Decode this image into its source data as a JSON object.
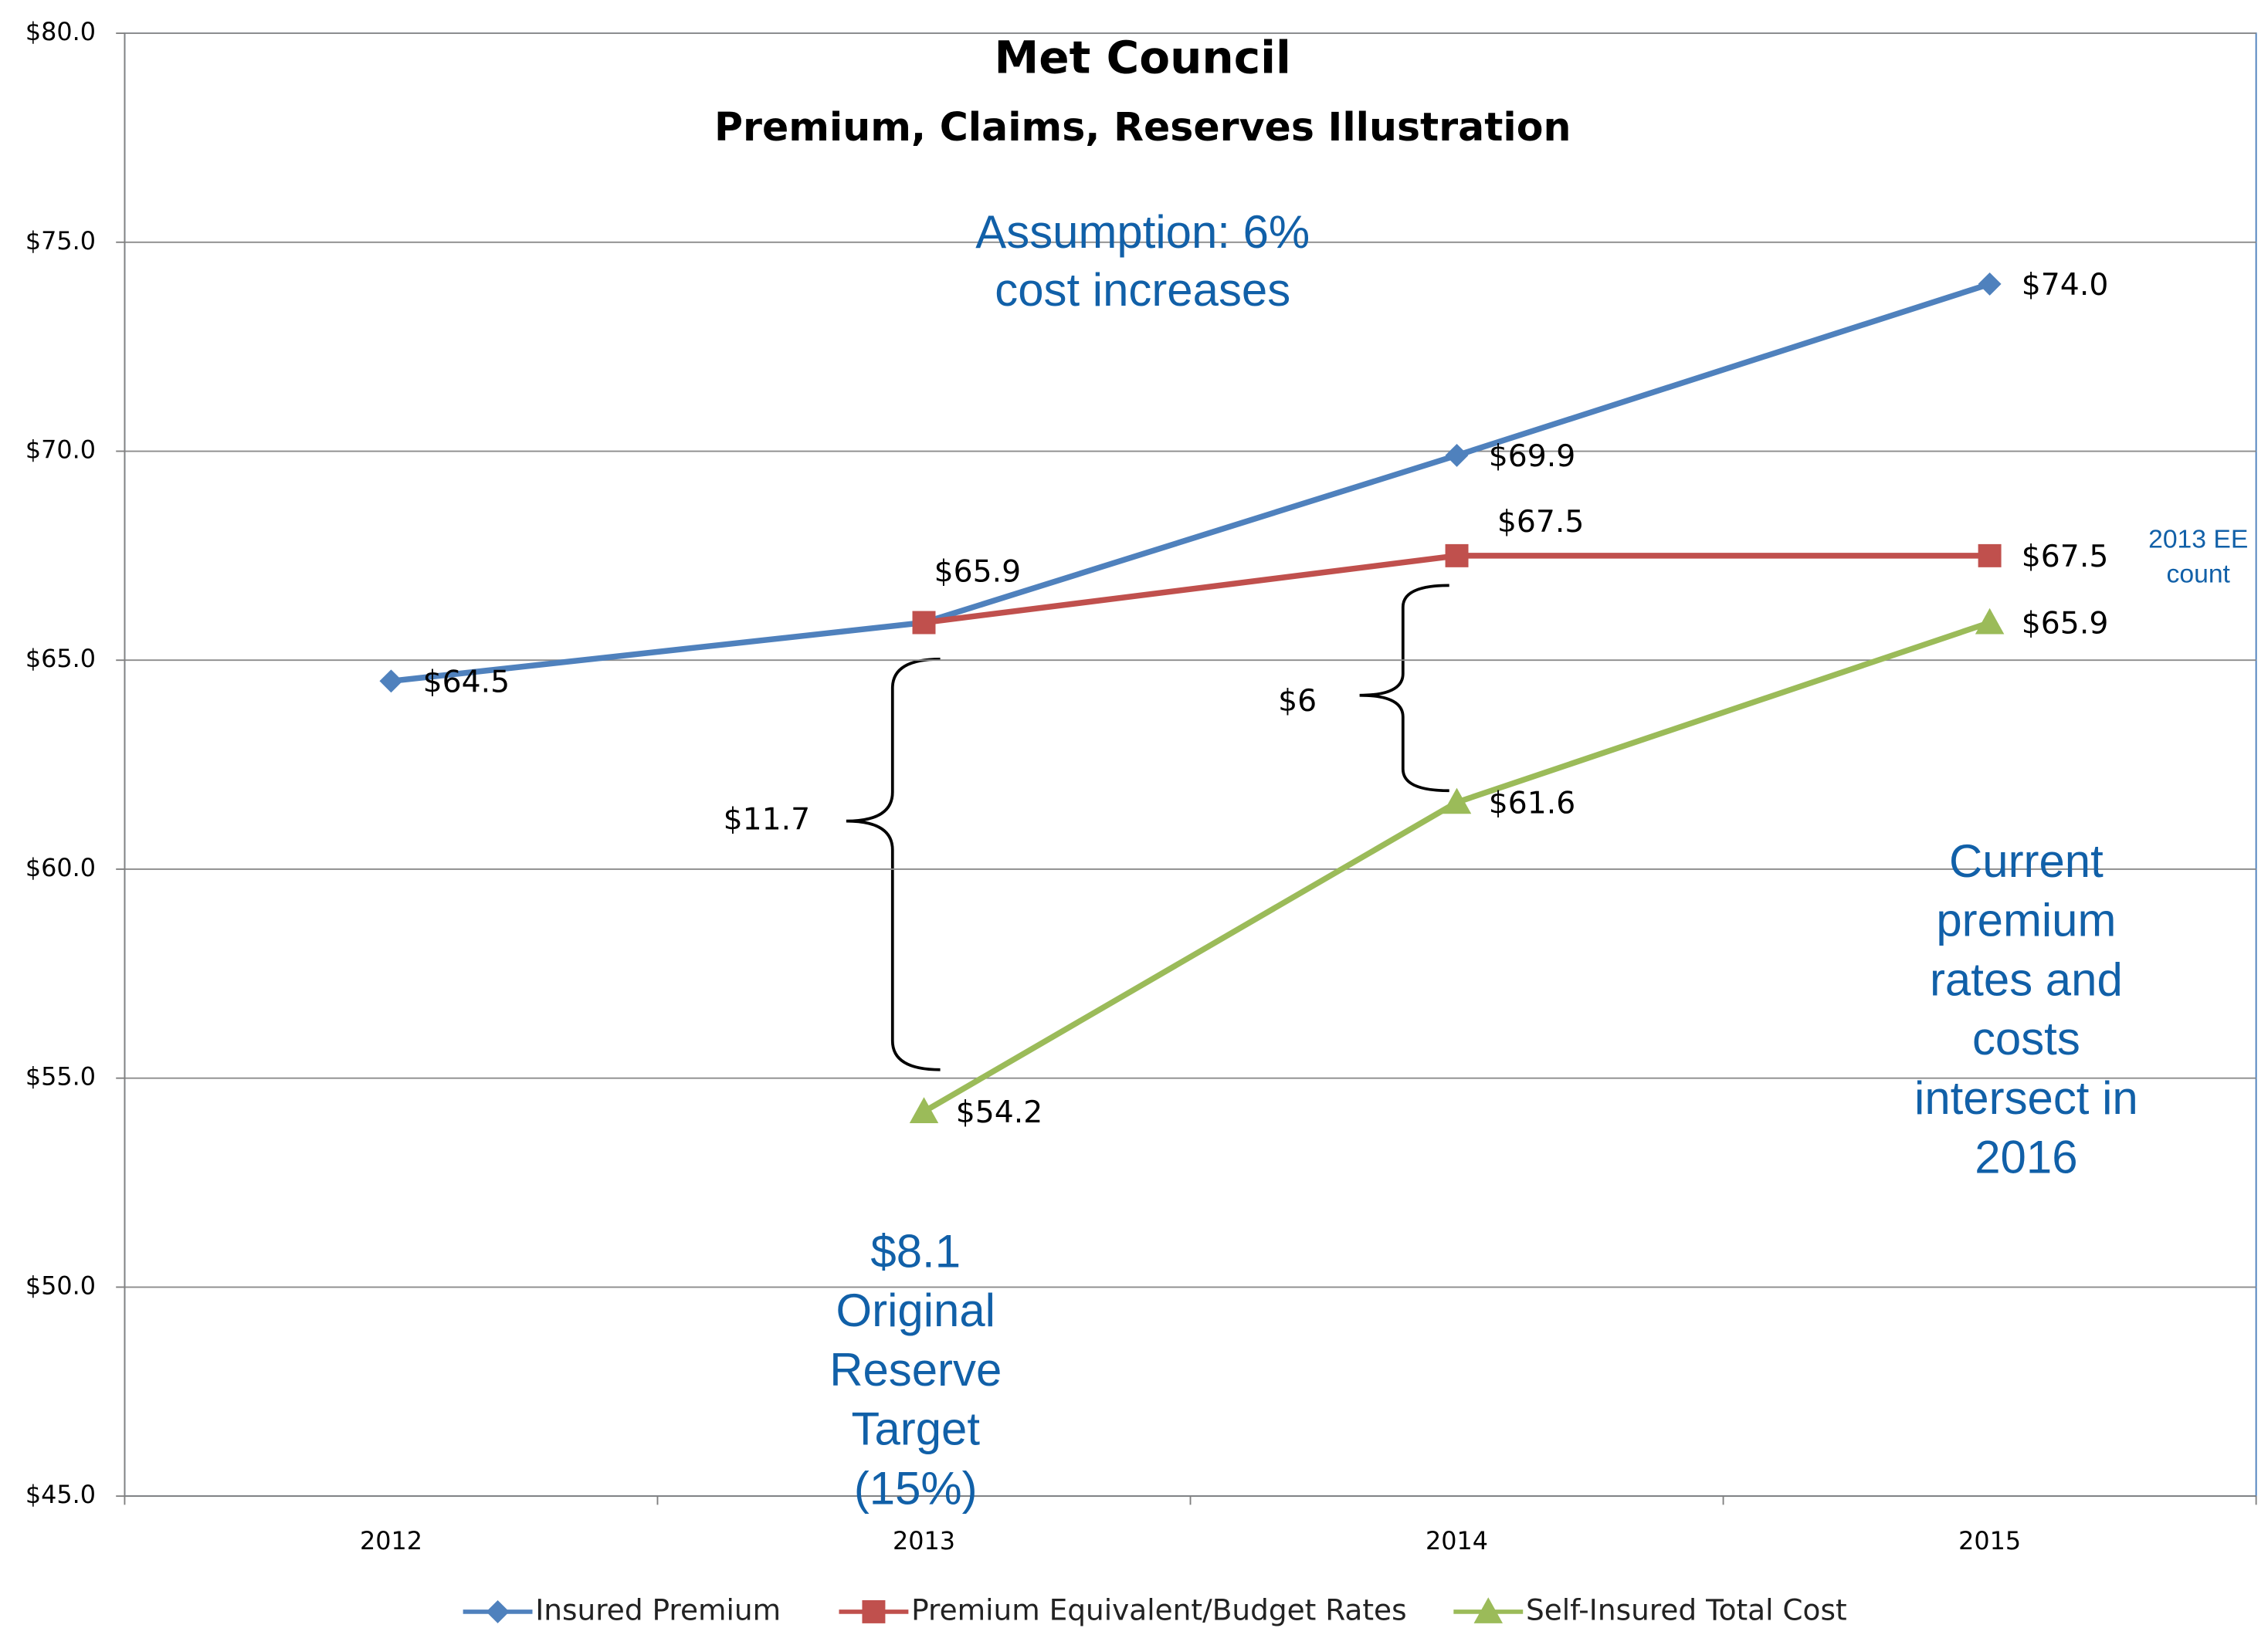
{
  "chart_data": {
    "type": "line",
    "title": "Met Council",
    "subtitle": "Premium, Claims, Reserves Illustration",
    "categories": [
      "2012",
      "2013",
      "2014",
      "2015"
    ],
    "series": [
      {
        "name": "Insured Premium",
        "color": "#4f81bd",
        "marker": "diamond",
        "values": [
          64.5,
          65.9,
          69.9,
          74.0
        ],
        "value_labels": [
          "$64.5",
          null,
          "$69.9",
          "$74.0"
        ]
      },
      {
        "name": "Premium Equivalent/Budget Rates",
        "color": "#c0504d",
        "marker": "square",
        "values": [
          null,
          65.9,
          67.5,
          67.5
        ],
        "value_labels": [
          null,
          "$65.9",
          "$67.5",
          "$67.5"
        ]
      },
      {
        "name": "Self-Insured Total Cost",
        "color": "#9bbb59",
        "marker": "triangle",
        "values": [
          null,
          54.2,
          61.6,
          65.9
        ],
        "value_labels": [
          null,
          "$54.2",
          "$61.6",
          "$65.9"
        ]
      }
    ],
    "ylim": [
      45,
      80
    ],
    "yticks": [
      {
        "value": 45,
        "label": "$45.0"
      },
      {
        "value": 50,
        "label": "$50.0"
      },
      {
        "value": 55,
        "label": "$55.0"
      },
      {
        "value": 60,
        "label": "$60.0"
      },
      {
        "value": 65,
        "label": "$65.0"
      },
      {
        "value": 70,
        "label": "$70.0"
      },
      {
        "value": 75,
        "label": "$75.0"
      },
      {
        "value": 80,
        "label": "$80.0"
      }
    ],
    "grid": true,
    "legend": "bottom",
    "annotations": [
      {
        "lines": [
          "Assumption: 6%",
          "cost increases"
        ]
      },
      {
        "lines": [
          "$8.1",
          "Original",
          "Reserve",
          "Target",
          "(15%)"
        ]
      },
      {
        "lines": [
          "Current",
          "premium",
          "rates and",
          "costs",
          "intersect in",
          "2016"
        ]
      },
      {
        "lines": [
          "2013 EE",
          "count"
        ]
      },
      {
        "lines": [
          "$11.7"
        ]
      },
      {
        "lines": [
          "$6"
        ]
      }
    ]
  }
}
